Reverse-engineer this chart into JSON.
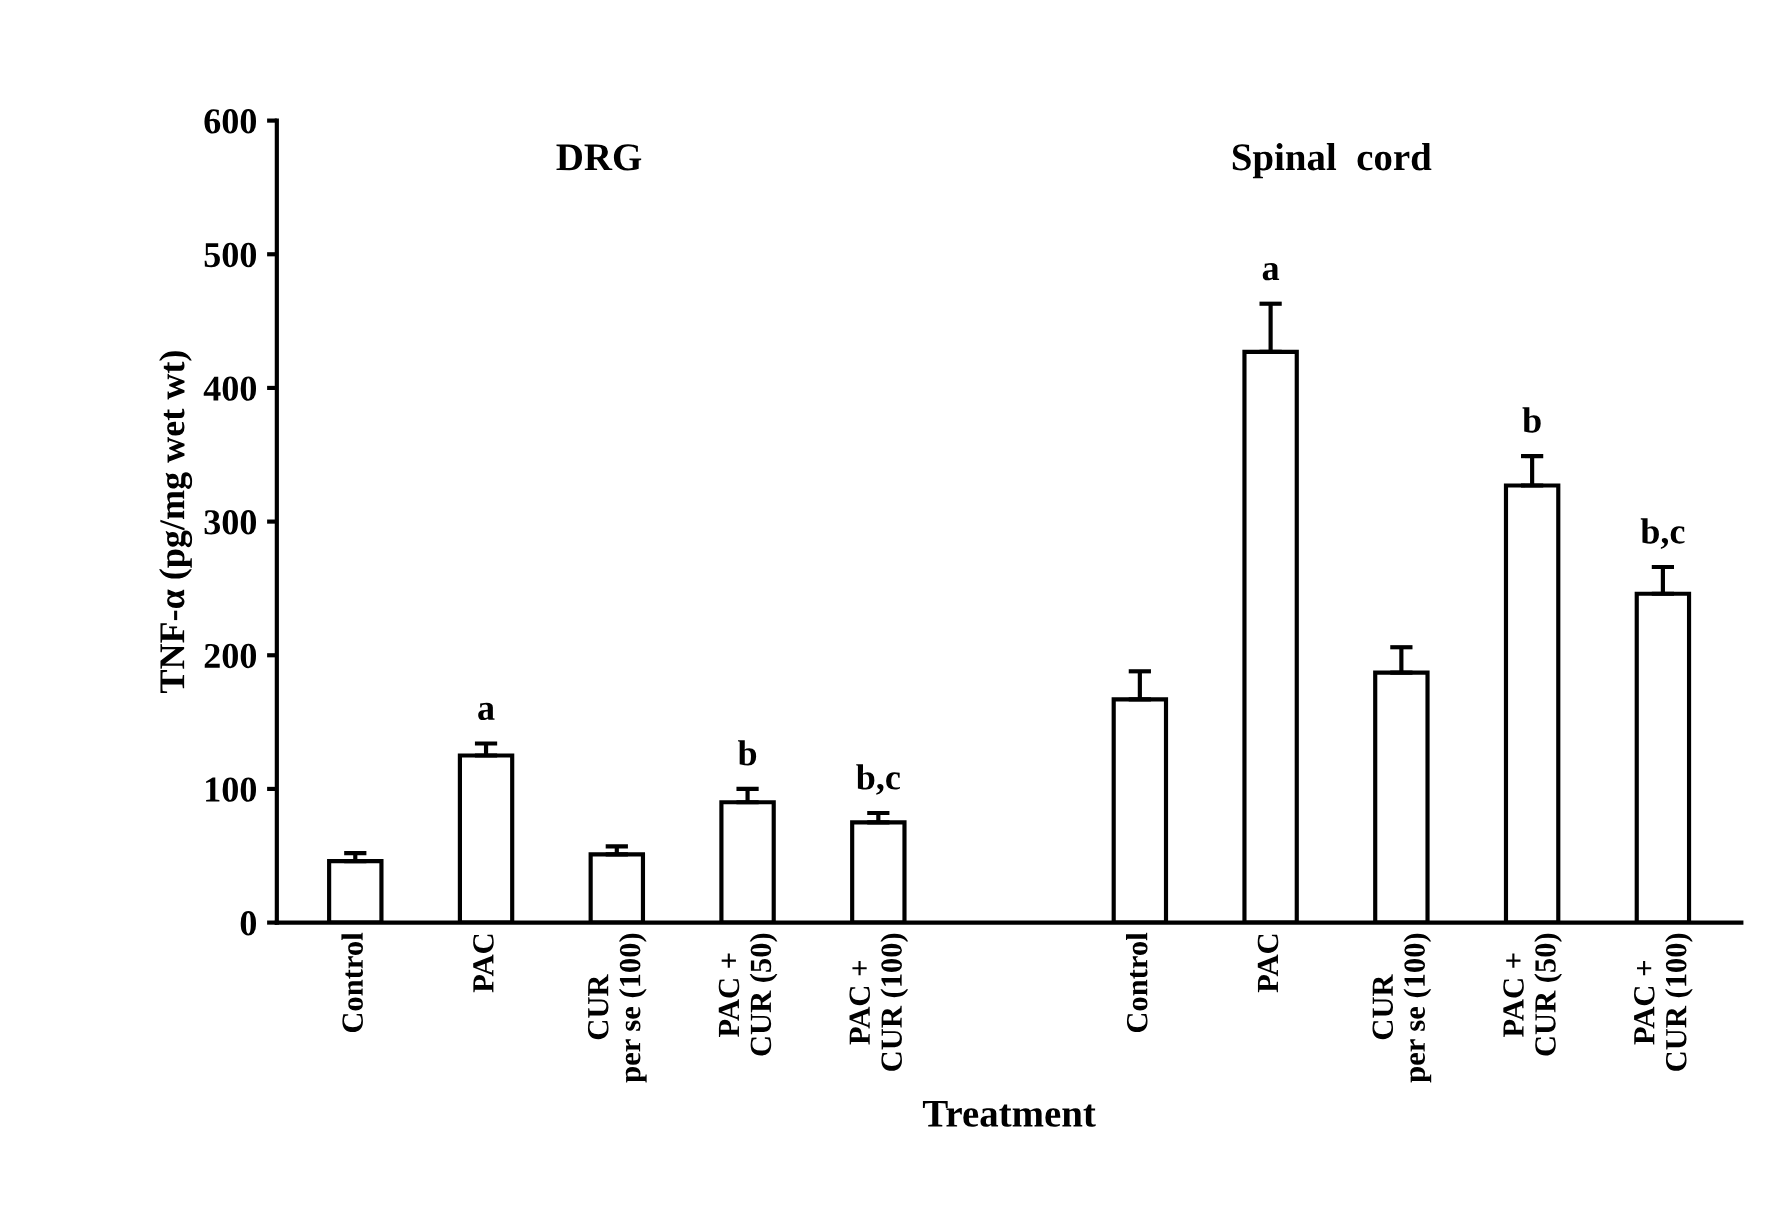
{
  "chart_data": {
    "type": "bar",
    "categories": [
      "Control",
      "PAC",
      "CUR\nper se (100)",
      "PAC +\nCUR (50)",
      "PAC +\nCUR (100)",
      null,
      "Control",
      "PAC",
      "CUR\nper se (100)",
      "PAC +\nCUR (50)",
      "PAC +\nCUR (100)"
    ],
    "values": [
      46,
      125,
      51,
      90,
      75,
      null,
      167,
      427,
      187,
      327,
      246
    ],
    "errors": [
      [
        46,
        52
      ],
      [
        125,
        134
      ],
      [
        51,
        57
      ],
      [
        90,
        100
      ],
      [
        75,
        82
      ],
      null,
      [
        167,
        188
      ],
      [
        427,
        463
      ],
      [
        187,
        206
      ],
      [
        327,
        349
      ],
      [
        246,
        266
      ]
    ],
    "value_labels": [
      null,
      "a",
      null,
      "b",
      "b,c",
      null,
      null,
      "a",
      null,
      "b",
      "b,c"
    ],
    "color": "#ffffff",
    "ylabel": "TNF-α (pg/mg wet wt)",
    "xlabel": "Treatment",
    "annotations": [
      "DRG",
      "Spinal  cord"
    ],
    "ylim": [
      0,
      600
    ],
    "yticks": [
      0,
      100,
      200,
      300,
      400,
      500,
      600
    ],
    "grid": false,
    "legend": false
  }
}
